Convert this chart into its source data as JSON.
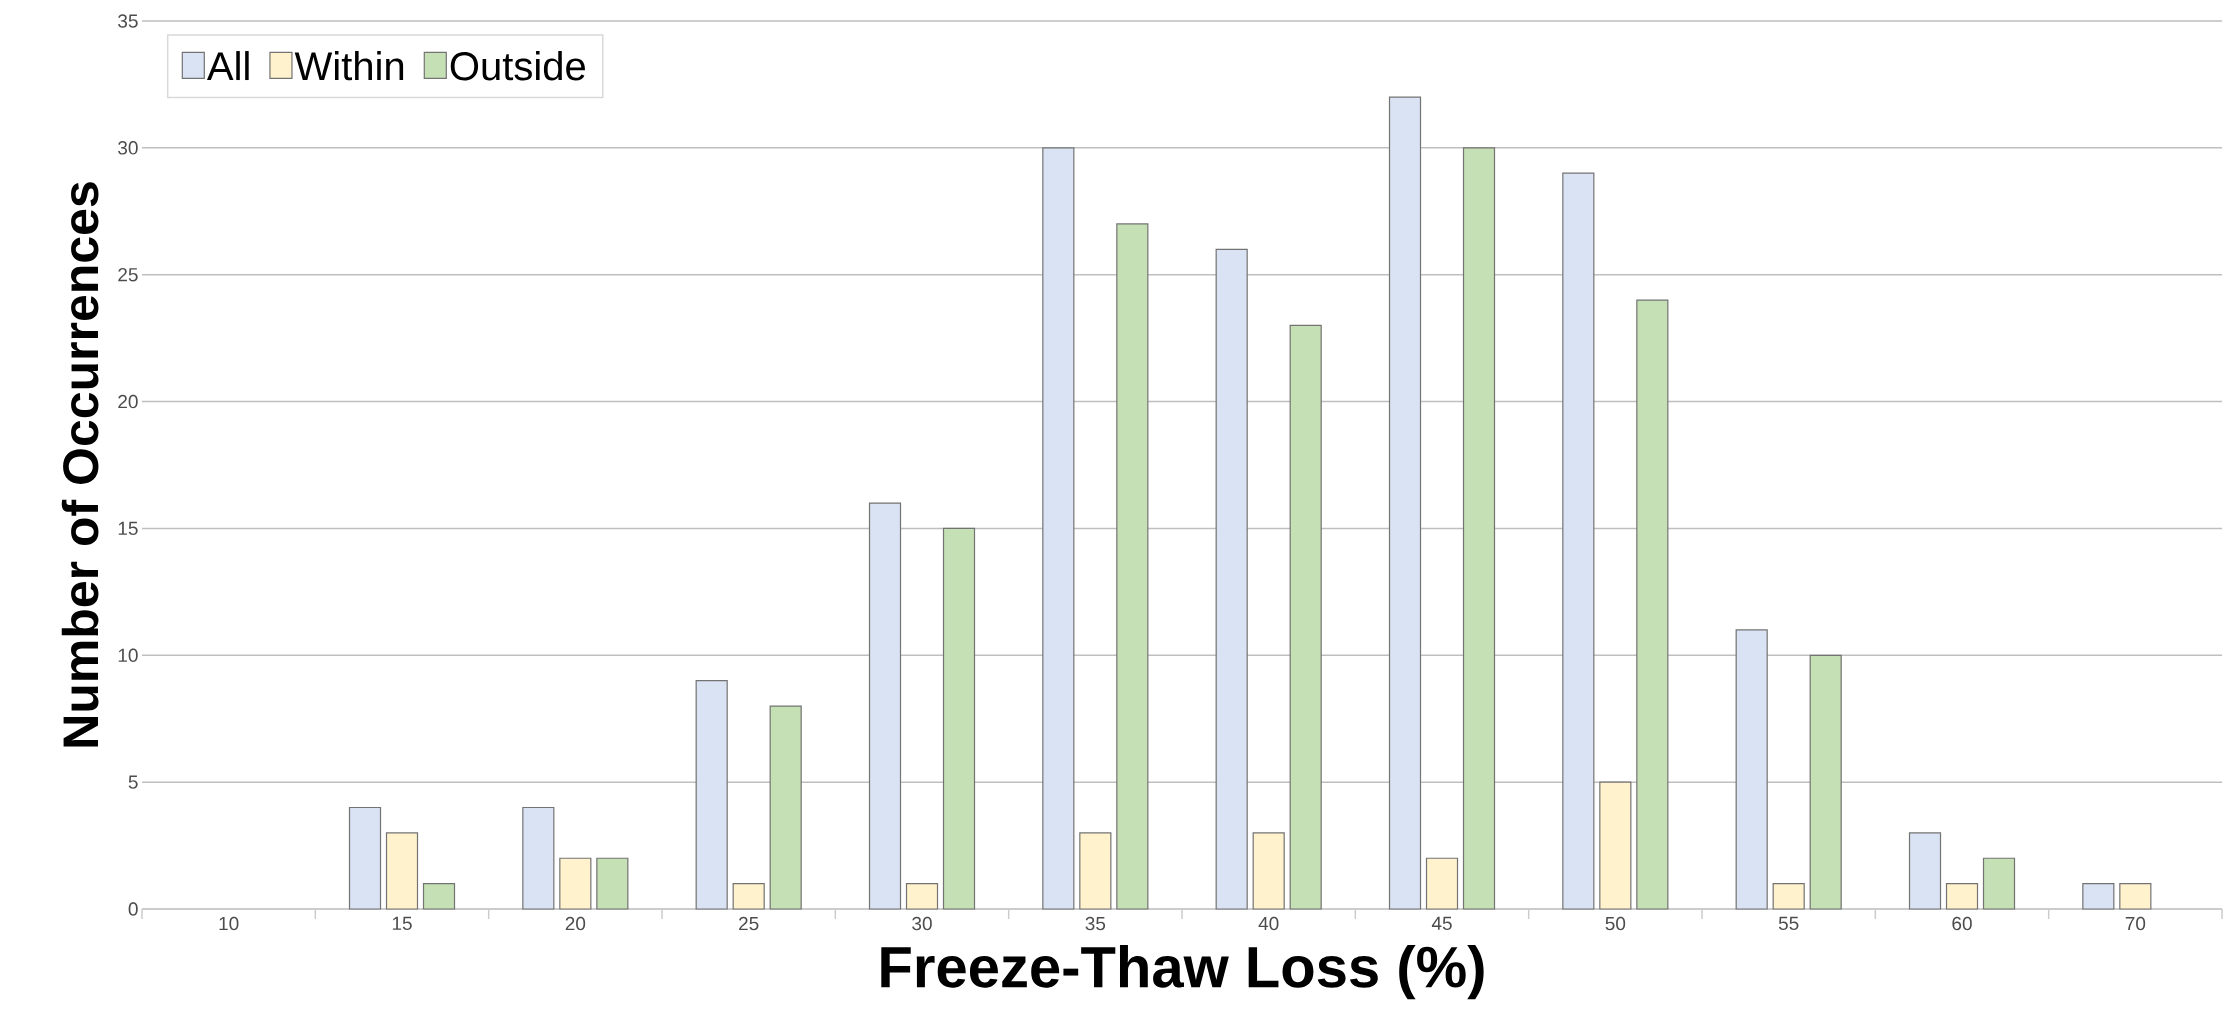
{
  "chart_data": {
    "type": "bar",
    "xlabel": "Freeze-Thaw Loss (%)",
    "ylabel": "Number of Occurrences",
    "categories": [
      "10",
      "15",
      "20",
      "25",
      "30",
      "35",
      "40",
      "45",
      "50",
      "55",
      "60",
      "70"
    ],
    "series": [
      {
        "name": "All",
        "color": "#dae3f3",
        "values": [
          null,
          4,
          4,
          9,
          16,
          30,
          26,
          32,
          29,
          11,
          3,
          1
        ]
      },
      {
        "name": "Within",
        "color": "#fff2cc",
        "values": [
          null,
          3,
          2,
          1,
          1,
          3,
          3,
          2,
          5,
          1,
          1,
          1
        ]
      },
      {
        "name": "Outside",
        "color": "#c5e0b4",
        "values": [
          null,
          1,
          2,
          8,
          15,
          27,
          23,
          30,
          24,
          10,
          2,
          null
        ]
      }
    ],
    "ylim": [
      0,
      35
    ],
    "yticks": [
      0,
      5,
      10,
      15,
      20,
      25,
      30,
      35
    ],
    "grid": "y",
    "legend": "top left"
  }
}
